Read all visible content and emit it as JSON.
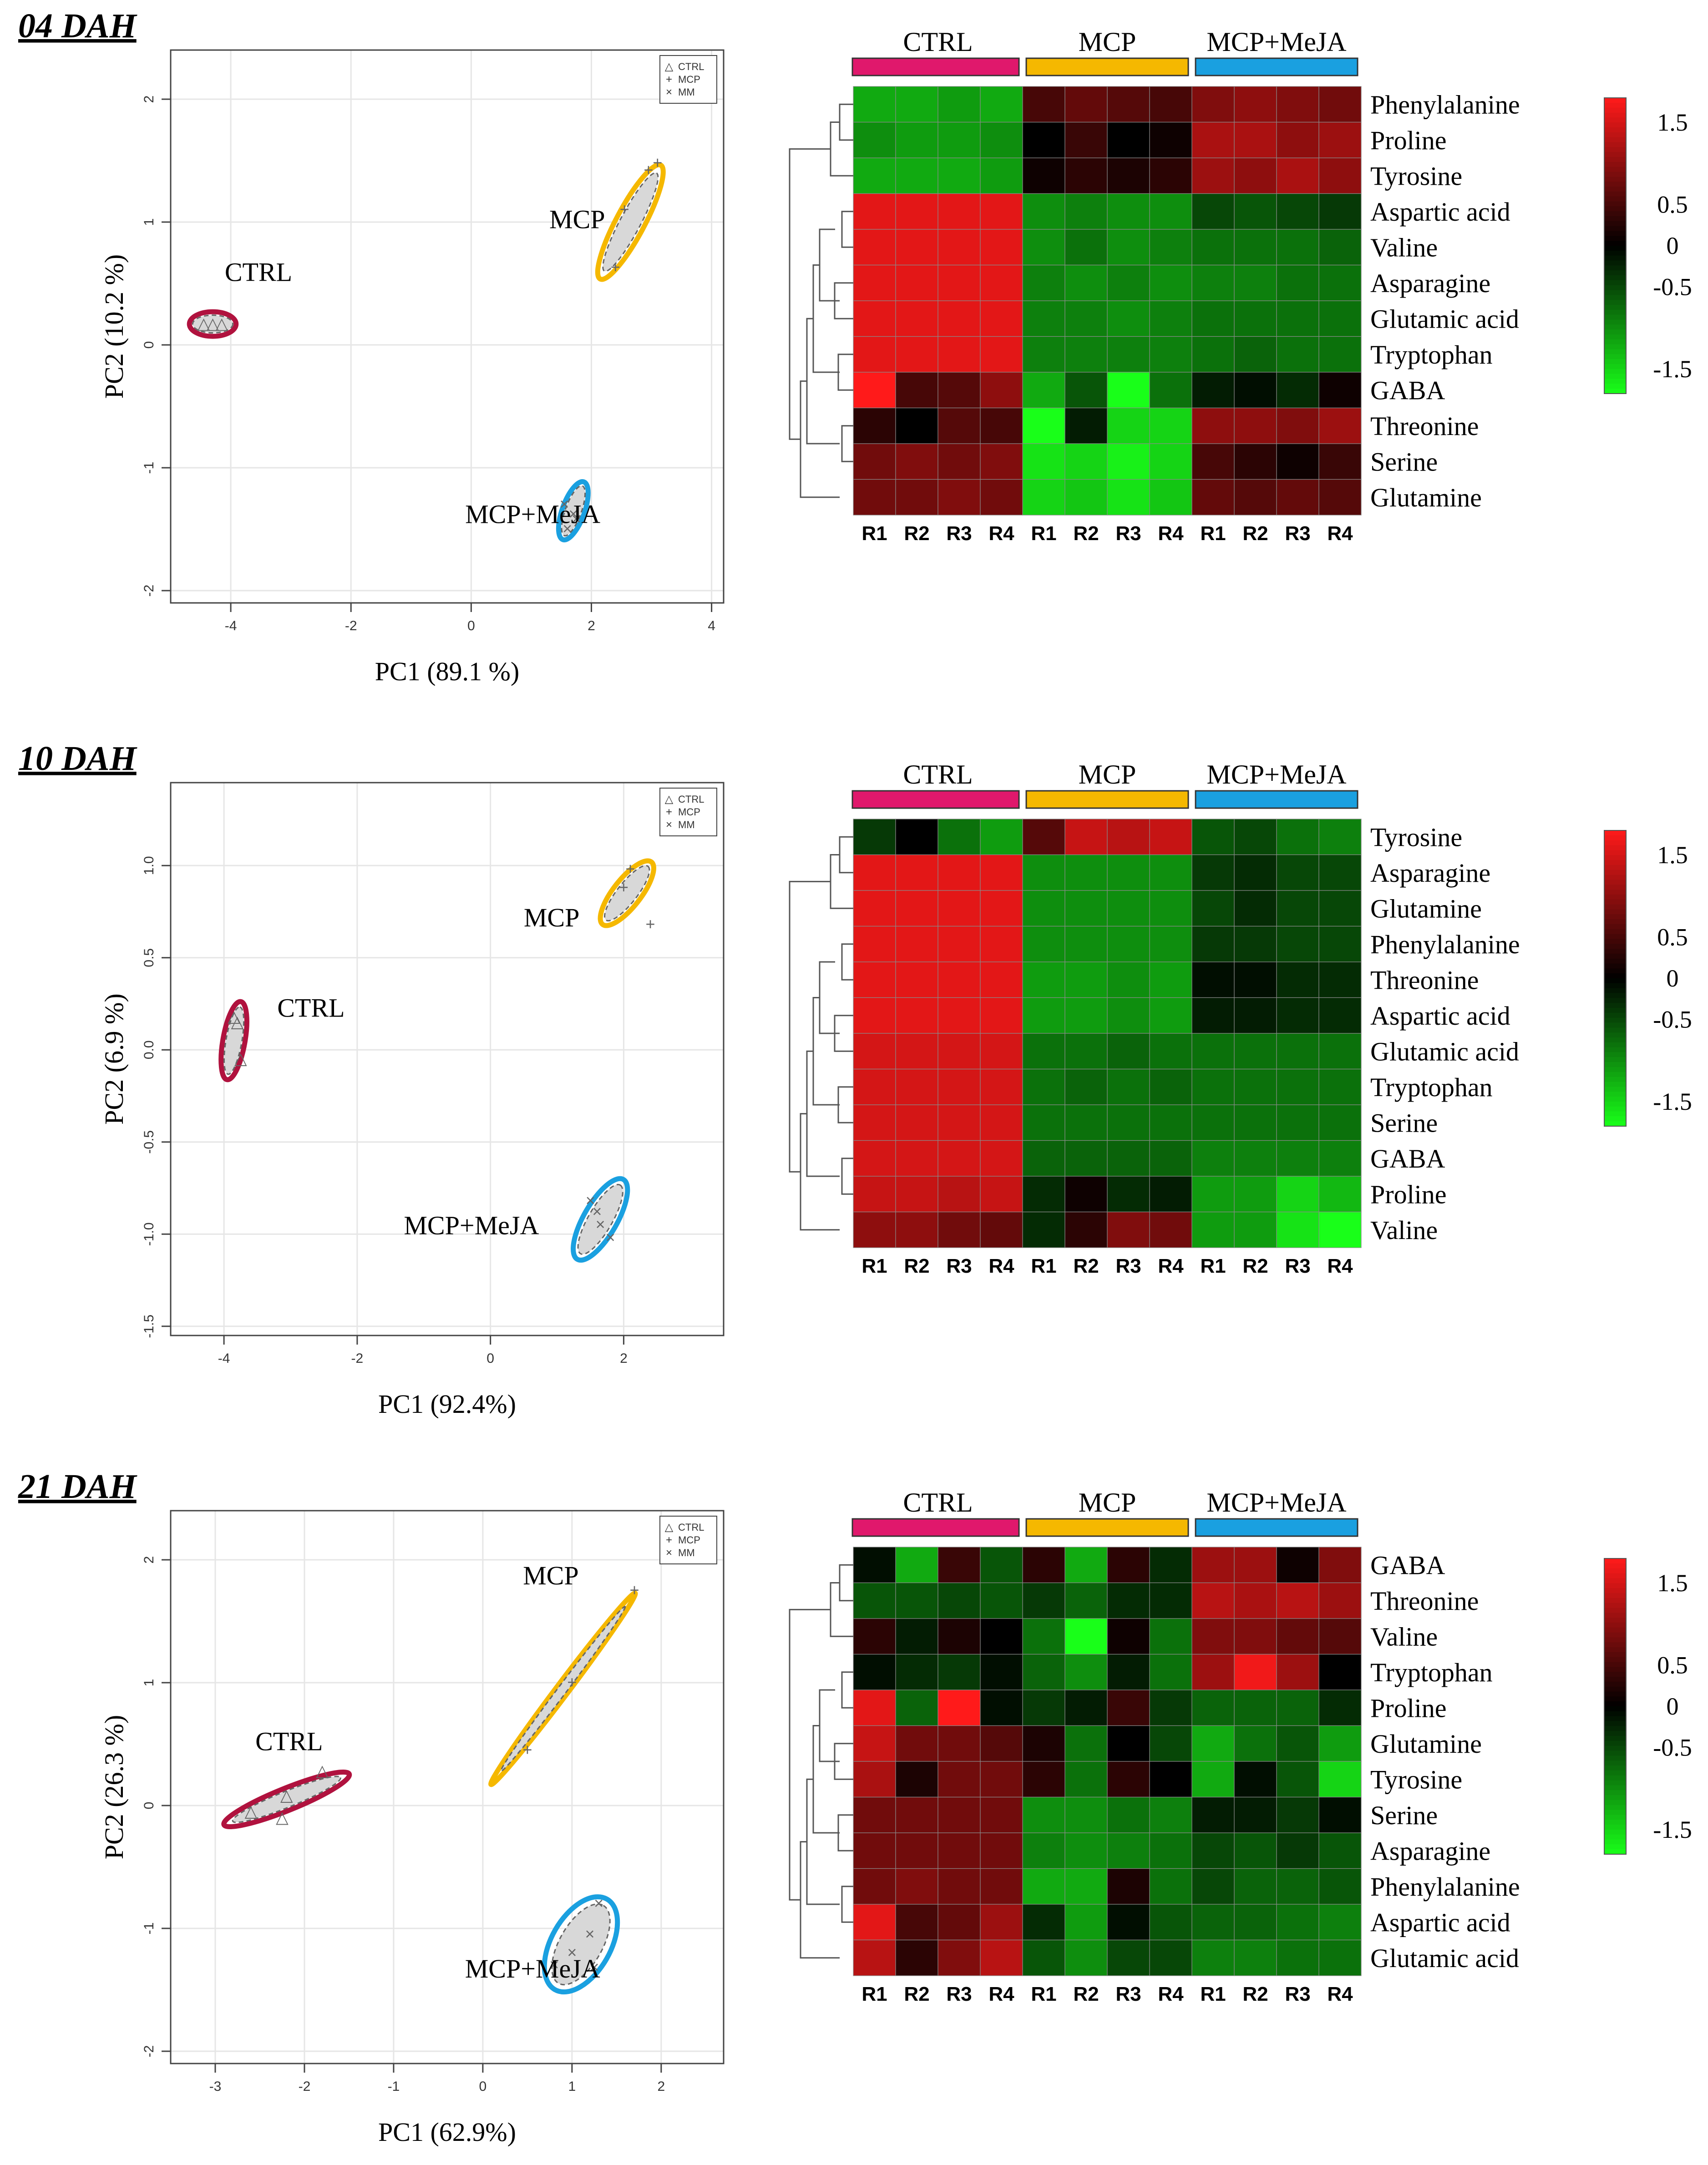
{
  "colors": {
    "ctrl": "#e0186c",
    "ctrl_ellipse": "#b0123e",
    "mcp": "#f5b800",
    "mcpmeja": "#1aa0e0",
    "heat_high": "#ff1a1a",
    "heat_mid": "#000000",
    "heat_low": "#19ff19",
    "fill": "#d8d8d8"
  },
  "colorbar": {
    "ticks": [
      "1.5",
      "0.5",
      "0",
      "-0.5",
      "-1.5"
    ],
    "min": -1.8,
    "max": 1.8
  },
  "groups": [
    "CTRL",
    "MCP",
    "MCP+MeJA"
  ],
  "group_labels": {
    "ctrl": "CTRL",
    "mcp": "MCP",
    "mcpmeja": "MCP+MeJA"
  },
  "legend": {
    "ctrl": "CTRL",
    "mcp": "MCP",
    "mm": "MM"
  },
  "replicates": [
    "R1",
    "R2",
    "R3",
    "R4"
  ],
  "panels": [
    {
      "title": "04 DAH",
      "pca": {
        "xlabel": "PC1  (89.1  %)",
        "ylabel": "PC2  (10.2  %)",
        "xlim": [
          -5,
          4.2
        ],
        "ylim": [
          -2.1,
          2.4
        ],
        "xticks": [
          -4,
          -2,
          0,
          2,
          4
        ],
        "yticks": [
          -2,
          -1,
          0,
          1,
          2
        ],
        "xtick_labels": [
          "-4",
          "-2",
          "0",
          "2",
          "4"
        ],
        "ytick_labels": [
          "-2",
          "-1",
          "0",
          "1",
          "2"
        ],
        "groups": {
          "ctrl": {
            "points": [
              [
                -4.45,
                0.17
              ],
              [
                -4.3,
                0.17
              ],
              [
                -4.15,
                0.17
              ]
            ],
            "center": [
              -4.3,
              0.17
            ],
            "rx": 0.38,
            "ry": 0.2,
            "angle": 0
          },
          "mcp": {
            "points": [
              [
                2.55,
                1.1
              ],
              [
                2.95,
                1.42
              ],
              [
                3.1,
                1.48
              ],
              [
                2.4,
                0.63
              ]
            ],
            "center": [
              2.65,
              1.0
            ],
            "rx": 1.05,
            "ry": 0.23,
            "angle": 62
          },
          "mcpmeja": {
            "points": [
              [
                1.55,
                -1.3
              ],
              [
                1.7,
                -1.38
              ],
              [
                1.6,
                -1.5
              ],
              [
                1.75,
                -1.42
              ]
            ],
            "center": [
              1.7,
              -1.35
            ],
            "rx": 0.5,
            "ry": 0.18,
            "angle": 70
          }
        },
        "group_text_pos": {
          "ctrl": [
            -4.1,
            0.52
          ],
          "mcp": [
            1.3,
            0.95
          ],
          "mcpmeja": [
            -0.1,
            -1.45
          ]
        }
      },
      "heatmap": {
        "rows": [
          "Phenylalanine",
          "Proline",
          "Tyrosine",
          "Aspartic acid",
          "Valine",
          "Asparagine",
          "Glutamic acid",
          "Tryptophan",
          "GABA",
          "Threonine",
          "Serine",
          "Glutamine"
        ],
        "values": [
          [
            -1.2,
            -1.2,
            -1.1,
            -1.2,
            0.5,
            0.7,
            0.6,
            0.5,
            0.9,
            1.0,
            0.9,
            0.8
          ],
          [
            -1.0,
            -1.1,
            -1.1,
            -1.0,
            0.0,
            0.4,
            0.0,
            0.1,
            1.2,
            1.2,
            1.0,
            1.1
          ],
          [
            -1.2,
            -1.2,
            -1.2,
            -1.1,
            0.1,
            0.3,
            0.2,
            0.3,
            1.1,
            1.0,
            1.2,
            1.0
          ],
          [
            1.6,
            1.6,
            1.6,
            1.6,
            -1.0,
            -0.9,
            -1.0,
            -1.0,
            -0.5,
            -0.6,
            -0.5,
            -0.4
          ],
          [
            1.6,
            1.6,
            1.6,
            1.6,
            -1.0,
            -0.8,
            -1.0,
            -0.9,
            -0.8,
            -0.8,
            -0.8,
            -0.7
          ],
          [
            1.6,
            1.6,
            1.6,
            1.6,
            -0.9,
            -1.0,
            -0.9,
            -1.0,
            -0.9,
            -0.9,
            -0.8,
            -0.8
          ],
          [
            1.6,
            1.6,
            1.6,
            1.6,
            -0.9,
            -0.9,
            -1.0,
            -0.9,
            -0.8,
            -0.8,
            -0.8,
            -0.8
          ],
          [
            1.6,
            1.6,
            1.6,
            1.6,
            -0.9,
            -0.9,
            -0.9,
            -0.9,
            -0.8,
            -0.7,
            -0.8,
            -0.8
          ],
          [
            1.8,
            0.5,
            0.6,
            1.0,
            -1.2,
            -0.6,
            -1.8,
            -0.8,
            -0.2,
            -0.1,
            -0.3,
            0.1
          ],
          [
            0.3,
            0.0,
            0.6,
            0.5,
            -1.8,
            -0.2,
            -1.5,
            -1.5,
            1.0,
            1.0,
            0.9,
            1.1
          ],
          [
            0.8,
            0.9,
            0.8,
            0.9,
            -1.6,
            -1.5,
            -1.7,
            -1.5,
            0.5,
            0.3,
            0.1,
            0.4
          ],
          [
            0.8,
            0.8,
            0.9,
            0.8,
            -1.5,
            -1.4,
            -1.6,
            -1.4,
            0.7,
            0.6,
            0.7,
            0.6
          ]
        ]
      }
    },
    {
      "title": "10 DAH",
      "pca": {
        "xlabel": "PC1  (92.4%)",
        "ylabel": "PC2  (6.9  %)",
        "xlim": [
          -4.8,
          3.5
        ],
        "ylim": [
          -1.55,
          1.45
        ],
        "xticks": [
          -4,
          -2,
          0,
          2
        ],
        "yticks": [
          -1.5,
          -1.0,
          -0.5,
          0.0,
          0.5,
          1.0
        ],
        "xtick_labels": [
          "-4",
          "-2",
          "0",
          "2"
        ],
        "ytick_labels": [
          "-1.5",
          "-1.0",
          "-0.5",
          "0.0",
          "0.5",
          "1.0"
        ],
        "groups": {
          "ctrl": {
            "points": [
              [
                -3.8,
                0.15
              ],
              [
                -3.75,
                -0.05
              ],
              [
                -3.85,
                0.18
              ]
            ],
            "center": [
              -3.85,
              0.05
            ],
            "rx": 0.43,
            "ry": 0.12,
            "angle": 80
          },
          "mcp": {
            "points": [
              [
                2.0,
                0.88
              ],
              [
                2.1,
                0.98
              ],
              [
                2.4,
                0.68
              ]
            ],
            "center": [
              2.05,
              0.85
            ],
            "rx": 0.43,
            "ry": 0.15,
            "angle": 52
          },
          "mcpmeja": {
            "points": [
              [
                1.5,
                -0.82
              ],
              [
                1.6,
                -0.88
              ],
              [
                1.8,
                -1.02
              ],
              [
                1.65,
                -0.95
              ]
            ],
            "center": [
              1.65,
              -0.92
            ],
            "rx": 0.5,
            "ry": 0.18,
            "angle": 60
          }
        },
        "group_text_pos": {
          "ctrl": [
            -3.2,
            0.18
          ],
          "mcp": [
            0.5,
            0.67
          ],
          "mcpmeja": [
            -1.3,
            -1.0
          ]
        }
      },
      "heatmap": {
        "rows": [
          "Tyrosine",
          "Asparagine",
          "Glutamine",
          "Phenylalanine",
          "Threonine",
          "Aspartic acid",
          "Glutamic acid",
          "Tryptophan",
          "Serine",
          "GABA",
          "Proline",
          "Valine"
        ],
        "values": [
          [
            -0.4,
            0.0,
            -0.8,
            -1.1,
            0.6,
            1.4,
            1.3,
            1.4,
            -0.6,
            -0.5,
            -0.8,
            -0.9
          ],
          [
            1.6,
            1.6,
            1.6,
            1.6,
            -1.0,
            -1.0,
            -1.0,
            -1.0,
            -0.4,
            -0.3,
            -0.5,
            -0.5
          ],
          [
            1.6,
            1.6,
            1.6,
            1.6,
            -1.0,
            -1.0,
            -1.0,
            -1.0,
            -0.5,
            -0.3,
            -0.5,
            -0.5
          ],
          [
            1.6,
            1.6,
            1.6,
            1.6,
            -1.0,
            -1.0,
            -1.0,
            -1.0,
            -0.4,
            -0.4,
            -0.5,
            -0.5
          ],
          [
            1.6,
            1.6,
            1.6,
            1.6,
            -1.1,
            -1.1,
            -1.0,
            -1.1,
            -0.1,
            -0.1,
            -0.3,
            -0.3
          ],
          [
            1.6,
            1.6,
            1.6,
            1.6,
            -1.1,
            -1.1,
            -1.0,
            -1.1,
            -0.2,
            -0.2,
            -0.3,
            -0.3
          ],
          [
            1.5,
            1.5,
            1.5,
            1.5,
            -0.8,
            -0.8,
            -0.7,
            -0.8,
            -0.8,
            -0.8,
            -0.8,
            -0.8
          ],
          [
            1.5,
            1.5,
            1.5,
            1.5,
            -0.8,
            -0.7,
            -0.8,
            -0.7,
            -0.8,
            -0.8,
            -0.8,
            -0.8
          ],
          [
            1.5,
            1.5,
            1.5,
            1.5,
            -0.8,
            -0.8,
            -0.8,
            -0.8,
            -0.8,
            -0.8,
            -0.8,
            -0.8
          ],
          [
            1.5,
            1.5,
            1.5,
            1.5,
            -0.7,
            -0.7,
            -0.7,
            -0.7,
            -0.9,
            -0.9,
            -0.9,
            -0.9
          ],
          [
            1.4,
            1.4,
            1.3,
            1.4,
            -0.3,
            0.1,
            -0.3,
            -0.2,
            -1.1,
            -1.1,
            -1.5,
            -1.3
          ],
          [
            1.0,
            1.0,
            0.8,
            0.7,
            -0.3,
            0.3,
            0.9,
            0.8,
            -1.1,
            -1.1,
            -1.6,
            -1.8
          ]
        ]
      }
    },
    {
      "title": "21 DAH",
      "pca": {
        "xlabel": "PC1  (62.9%)",
        "ylabel": "PC2  (26.3  %)",
        "xlim": [
          -3.5,
          2.7
        ],
        "ylim": [
          -2.1,
          2.4
        ],
        "xticks": [
          -3,
          -2,
          -1,
          0,
          1,
          2
        ],
        "yticks": [
          -2,
          -1,
          0,
          1,
          2
        ],
        "xtick_labels": [
          "-3",
          "-2",
          "-1",
          "0",
          "1",
          "2"
        ],
        "ytick_labels": [
          "-2",
          "-1",
          "0",
          "1",
          "2"
        ],
        "groups": {
          "ctrl": {
            "points": [
              [
                -2.6,
                -0.05
              ],
              [
                -2.2,
                0.08
              ],
              [
                -2.25,
                -0.1
              ],
              [
                -1.8,
                0.28
              ]
            ],
            "center": [
              -2.2,
              0.05
            ],
            "rx": 1.1,
            "ry": 0.18,
            "angle": 22
          },
          "mcp": {
            "points": [
              [
                0.5,
                0.45
              ],
              [
                1.0,
                1.0
              ],
              [
                1.7,
                1.75
              ]
            ],
            "center": [
              0.9,
              0.95
            ],
            "rx": 1.95,
            "ry": 0.1,
            "angle": 53
          },
          "mcpmeja": {
            "points": [
              [
                0.8,
                -1.3
              ],
              [
                1.2,
                -1.05
              ],
              [
                1.3,
                -0.8
              ],
              [
                1.25,
                -1.32
              ],
              [
                1.0,
                -1.2
              ]
            ],
            "center": [
              1.1,
              -1.13
            ],
            "rx": 0.85,
            "ry": 0.48,
            "angle": 60
          }
        },
        "group_text_pos": {
          "ctrl": [
            -2.55,
            0.45
          ],
          "mcp": [
            0.45,
            1.8
          ],
          "mcpmeja": [
            -0.2,
            -1.4
          ]
        }
      },
      "heatmap": {
        "rows": [
          "GABA",
          "Threonine",
          "Valine",
          "Tryptophan",
          "Proline",
          "Glutamine",
          "Tyrosine",
          "Serine",
          "Asparagine",
          "Phenylalanine",
          "Aspartic acid",
          "Glutamic acid"
        ],
        "values": [
          [
            -0.1,
            -1.2,
            0.4,
            -0.6,
            0.3,
            -1.2,
            0.3,
            -0.3,
            1.1,
            1.1,
            0.1,
            0.9
          ],
          [
            -0.6,
            -0.6,
            -0.5,
            -0.6,
            -0.4,
            -0.7,
            -0.3,
            -0.3,
            1.3,
            1.2,
            1.3,
            1.1
          ],
          [
            0.3,
            -0.2,
            0.2,
            0.0,
            -0.8,
            -1.8,
            0.1,
            -0.8,
            0.9,
            0.9,
            0.7,
            0.6
          ],
          [
            -0.1,
            -0.3,
            -0.4,
            -0.1,
            -0.7,
            -1.0,
            -0.2,
            -0.8,
            1.1,
            1.7,
            1.1,
            0.0
          ],
          [
            1.6,
            -0.7,
            1.8,
            -0.1,
            -0.4,
            -0.2,
            0.4,
            -0.4,
            -0.7,
            -0.7,
            -0.7,
            -0.3
          ],
          [
            1.4,
            0.8,
            0.8,
            0.6,
            0.2,
            -0.8,
            0.0,
            -0.5,
            -1.2,
            -0.8,
            -0.6,
            -1.1
          ],
          [
            1.2,
            0.2,
            0.8,
            0.8,
            0.3,
            -0.8,
            0.3,
            0.0,
            -1.2,
            -0.1,
            -0.6,
            -1.5
          ],
          [
            0.8,
            0.8,
            0.8,
            0.8,
            -1.0,
            -1.0,
            -0.8,
            -0.9,
            -0.2,
            -0.2,
            -0.4,
            -0.1
          ],
          [
            0.8,
            0.8,
            0.8,
            0.8,
            -0.9,
            -1.0,
            -0.9,
            -0.8,
            -0.5,
            -0.6,
            -0.4,
            -0.6
          ],
          [
            0.8,
            0.9,
            0.8,
            0.8,
            -1.2,
            -1.2,
            0.2,
            -0.8,
            -0.5,
            -0.7,
            -0.7,
            -0.6
          ],
          [
            1.6,
            0.5,
            0.7,
            1.1,
            -0.3,
            -1.1,
            -0.1,
            -0.6,
            -0.7,
            -0.7,
            -0.8,
            -0.9
          ],
          [
            1.3,
            0.3,
            0.9,
            1.3,
            -0.6,
            -1.0,
            -0.5,
            -0.5,
            -0.9,
            -0.9,
            -0.8,
            -0.8
          ]
        ]
      }
    }
  ]
}
